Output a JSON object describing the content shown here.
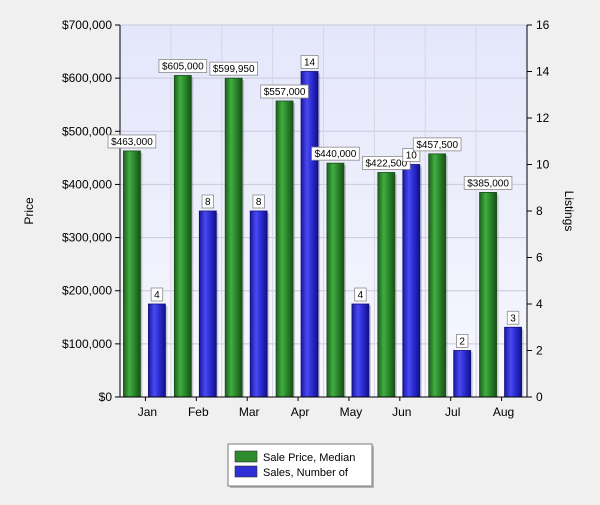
{
  "chart_data": {
    "type": "bar",
    "title": "",
    "categories": [
      "Jan",
      "Feb",
      "Mar",
      "Apr",
      "May",
      "Jun",
      "Jul",
      "Aug"
    ],
    "series": [
      {
        "name": "Sale Price, Median",
        "axis": "left",
        "color": "#2e8b2e",
        "values": [
          463000,
          605000,
          599950,
          557000,
          440000,
          422500,
          457500,
          385000
        ],
        "labels": [
          "$463,000",
          "$605,000",
          "$599,950",
          "$557,000",
          "$440,000",
          "$422,500",
          "$457,500",
          "$385,000"
        ]
      },
      {
        "name": "Sales, Number of",
        "axis": "right",
        "color": "#2f2fd6",
        "values": [
          4,
          8,
          8,
          14,
          4,
          10,
          2,
          3
        ],
        "labels": [
          "4",
          "8",
          "8",
          "14",
          "4",
          "10",
          "2",
          "3"
        ]
      }
    ],
    "ylabel_left": "Price",
    "ylabel_right": "Listings",
    "ylim_left": [
      0,
      700000
    ],
    "ylim_right": [
      0,
      16
    ],
    "yticks_left": [
      "$0",
      "$100,000",
      "$200,000",
      "$300,000",
      "$400,000",
      "$500,000",
      "$600,000",
      "$700,000"
    ],
    "yticks_right": [
      "0",
      "2",
      "4",
      "6",
      "8",
      "10",
      "12",
      "14",
      "16"
    ],
    "grid": true,
    "legend_position": "bottom-center"
  }
}
